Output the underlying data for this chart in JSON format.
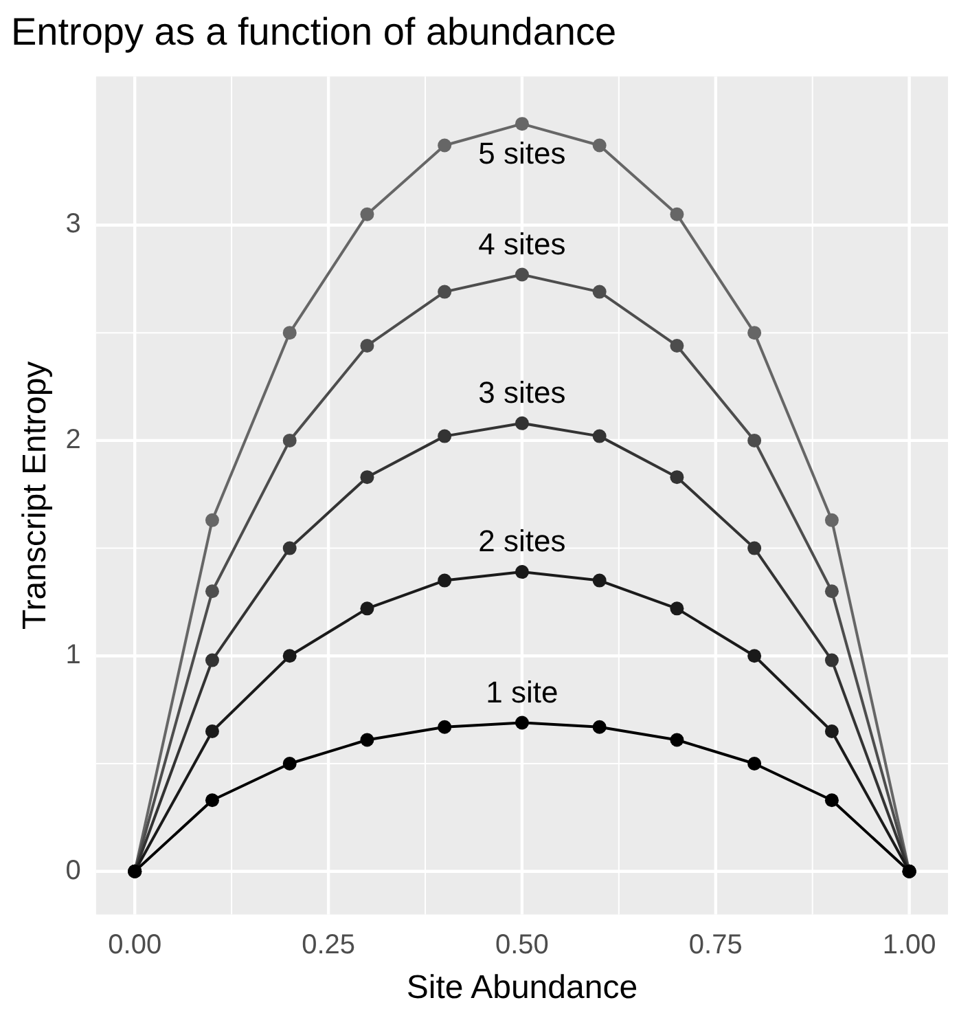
{
  "chart_data": {
    "type": "line",
    "title": "Entropy as a function of abundance",
    "xlabel": "Site Abundance",
    "ylabel": "Transcript Entropy",
    "x": [
      0,
      0.1,
      0.2,
      0.3,
      0.4,
      0.5,
      0.6,
      0.7,
      0.8,
      0.9,
      1
    ],
    "series": [
      {
        "name": "1 site",
        "color": "#000000",
        "values": [
          0,
          0.33,
          0.5,
          0.61,
          0.67,
          0.69,
          0.67,
          0.61,
          0.5,
          0.33,
          0
        ]
      },
      {
        "name": "2 sites",
        "color": "#1a1a1a",
        "values": [
          0,
          0.65,
          1.0,
          1.22,
          1.35,
          1.39,
          1.35,
          1.22,
          1.0,
          0.65,
          0
        ]
      },
      {
        "name": "3 sites",
        "color": "#333333",
        "values": [
          0,
          0.98,
          1.5,
          1.83,
          2.02,
          2.08,
          2.02,
          1.83,
          1.5,
          0.98,
          0
        ]
      },
      {
        "name": "4 sites",
        "color": "#4d4d4d",
        "values": [
          0,
          1.3,
          2.0,
          2.44,
          2.69,
          2.77,
          2.69,
          2.44,
          2.0,
          1.3,
          0
        ]
      },
      {
        "name": "5 sites",
        "color": "#666666",
        "values": [
          0,
          1.63,
          2.5,
          3.05,
          3.37,
          3.47,
          3.37,
          3.05,
          2.5,
          1.63,
          0
        ]
      }
    ],
    "xlim": [
      -0.05,
      1.05
    ],
    "ylim": [
      -0.2,
      3.69
    ],
    "xticks": [
      {
        "value": 0,
        "label": "0.00"
      },
      {
        "value": 0.25,
        "label": "0.25"
      },
      {
        "value": 0.5,
        "label": "0.50"
      },
      {
        "value": 0.75,
        "label": "0.75"
      },
      {
        "value": 1,
        "label": "1.00"
      }
    ],
    "yticks": [
      0,
      1,
      2,
      3
    ],
    "grid": true,
    "marker": "circle",
    "line_style": "solid",
    "legend": false
  }
}
